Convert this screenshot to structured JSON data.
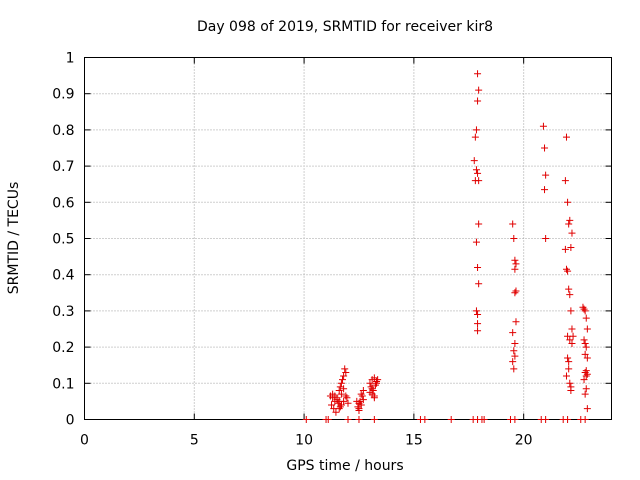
{
  "chart_data": {
    "type": "scatter",
    "title": "Day 098 of 2019, SRMTID for receiver kir8",
    "xlabel": "GPS time / hours",
    "ylabel": "SRMTID / TECUs",
    "xlim": [
      0,
      24
    ],
    "ylim": [
      0,
      1
    ],
    "xticks": [
      0,
      5,
      10,
      15,
      20
    ],
    "xtick_labels": [
      "0",
      "5",
      "10",
      "15",
      "20"
    ],
    "yticks": [
      0,
      0.1,
      0.2,
      0.3,
      0.4,
      0.5,
      0.6,
      0.7,
      0.8,
      0.9,
      1
    ],
    "ytick_labels": [
      "0",
      "0.1",
      "0.2",
      "0.3",
      "0.4",
      "0.5",
      "0.6",
      "0.7",
      "0.8",
      "0.9",
      "1"
    ],
    "grid": true,
    "marker": "+",
    "color": "#e00000",
    "series": [
      {
        "name": "kir8",
        "x": [
          10.1,
          11.0,
          11.1,
          12.0,
          12.5,
          13.2,
          15.3,
          15.5,
          16.7,
          17.7,
          17.9,
          18.1,
          18.2,
          19.4,
          19.6,
          20.8,
          21.0,
          21.8,
          22.0,
          22.6,
          22.8,
          11.2,
          11.3,
          11.4,
          11.5,
          11.25,
          11.35,
          11.45,
          11.55,
          11.3,
          11.4,
          11.5,
          11.6,
          11.65,
          11.7,
          11.75,
          11.8,
          11.6,
          11.7,
          11.8,
          11.85,
          11.9,
          11.95,
          11.7,
          11.8,
          11.9,
          12.0,
          11.6,
          11.65,
          11.7,
          12.4,
          12.5,
          12.6,
          12.7,
          12.5,
          12.6,
          12.7,
          12.45,
          12.55,
          12.65,
          12.5,
          12.6,
          13.0,
          13.1,
          13.2,
          13.3,
          13.05,
          13.15,
          13.25,
          13.35,
          13.1,
          13.2,
          13.3,
          13.0,
          13.1,
          13.2,
          17.75,
          17.85,
          17.9,
          17.95,
          17.8,
          17.85,
          17.9,
          17.95,
          17.8,
          17.9,
          17.95,
          17.85,
          17.9,
          17.95,
          17.85,
          17.9,
          17.9,
          17.9,
          19.5,
          19.55,
          19.6,
          19.65,
          19.6,
          19.65,
          19.6,
          19.65,
          19.5,
          19.6,
          19.55,
          19.6,
          19.5,
          19.55,
          20.9,
          20.95,
          21.0,
          20.95,
          21.0,
          21.9,
          21.95,
          22.0,
          22.05,
          22.1,
          22.15,
          22.2,
          21.95,
          22.0,
          22.05,
          22.1,
          22.15,
          22.2,
          22.25,
          21.9,
          22.0,
          22.1,
          22.2,
          22.0,
          22.05,
          22.1,
          22.15,
          21.95,
          22.05,
          22.15,
          22.7,
          22.75,
          22.8,
          22.85,
          22.9,
          22.75,
          22.8,
          22.85,
          22.9,
          22.8,
          22.85,
          22.9,
          22.75,
          22.8,
          22.85,
          22.9,
          22.8,
          22.85
        ],
        "y": [
          0,
          0,
          0,
          0,
          0,
          0,
          0,
          0,
          0,
          0,
          0,
          0,
          0,
          0,
          0,
          0,
          0,
          0,
          0,
          0,
          0,
          0.065,
          0.06,
          0.05,
          0.055,
          0.04,
          0.03,
          0.02,
          0.045,
          0.07,
          0.065,
          0.06,
          0.05,
          0.09,
          0.1,
          0.11,
          0.12,
          0.08,
          0.07,
          0.085,
          0.14,
          0.13,
          0.06,
          0.04,
          0.05,
          0.065,
          0.045,
          0.03,
          0.035,
          0.04,
          0.05,
          0.045,
          0.04,
          0.055,
          0.03,
          0.07,
          0.08,
          0.035,
          0.05,
          0.065,
          0.025,
          0.04,
          0.1,
          0.11,
          0.115,
          0.105,
          0.09,
          0.08,
          0.095,
          0.11,
          0.07,
          0.06,
          0.1,
          0.075,
          0.085,
          0.065,
          0.715,
          0.69,
          0.68,
          0.66,
          0.78,
          0.8,
          0.88,
          0.91,
          0.66,
          0.955,
          0.54,
          0.49,
          0.42,
          0.375,
          0.3,
          0.29,
          0.265,
          0.245,
          0.54,
          0.5,
          0.44,
          0.43,
          0.415,
          0.355,
          0.35,
          0.27,
          0.24,
          0.21,
          0.19,
          0.175,
          0.16,
          0.14,
          0.81,
          0.75,
          0.675,
          0.635,
          0.5,
          0.66,
          0.78,
          0.6,
          0.54,
          0.55,
          0.475,
          0.515,
          0.415,
          0.41,
          0.36,
          0.345,
          0.3,
          0.25,
          0.23,
          0.47,
          0.23,
          0.22,
          0.21,
          0.17,
          0.14,
          0.1,
          0.09,
          0.12,
          0.16,
          0.08,
          0.31,
          0.305,
          0.3,
          0.28,
          0.25,
          0.22,
          0.21,
          0.2,
          0.17,
          0.13,
          0.12,
          0.125,
          0.11,
          0.07,
          0.085,
          0.03,
          0.18,
          0.135
        ]
      }
    ]
  }
}
